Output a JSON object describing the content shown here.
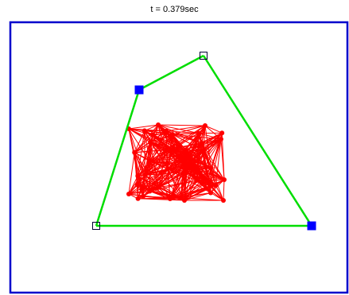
{
  "title": "t = 0.379sec",
  "colors": {
    "frame": "#0000cc",
    "hull": "#00dd00",
    "cluster": "#ff0000",
    "vertex": "#0000ff"
  },
  "hull": {
    "vertices": [
      {
        "id": "A",
        "style": "filled"
      },
      {
        "id": "B",
        "style": "hollow"
      },
      {
        "id": "C",
        "style": "filled"
      },
      {
        "id": "D",
        "style": "hollow"
      }
    ]
  },
  "cluster": {
    "node_count": 46
  }
}
